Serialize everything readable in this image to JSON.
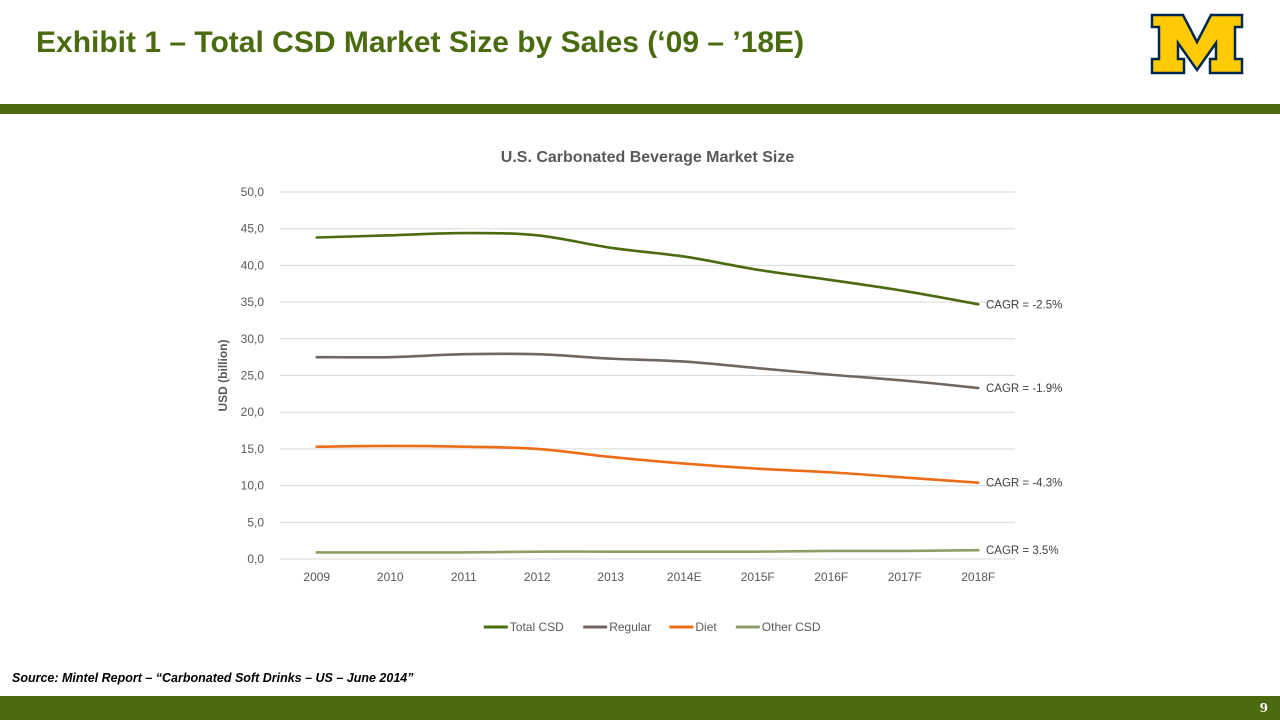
{
  "slide": {
    "title": "Exhibit 1 – Total CSD Market Size by Sales (‘09 – ’18E)",
    "source": "Source: Mintel Report – “Carbonated Soft Drinks – US – June 2014”",
    "page_number": "9",
    "logo_icon": "block-m-logo",
    "colors": {
      "accent": "#4a6b10",
      "logo_gold": "#ffcb05",
      "logo_blue": "#00274c"
    }
  },
  "chart_data": {
    "type": "line",
    "title": "U.S. Carbonated Beverage Market Size",
    "xlabel": "",
    "ylabel": "USD (billion)",
    "categories": [
      "2009",
      "2010",
      "2011",
      "2012",
      "2013",
      "2014E",
      "2015F",
      "2016F",
      "2017F",
      "2018F"
    ],
    "ylim": [
      0,
      50
    ],
    "yticks": [
      "0,0",
      "5,0",
      "10,0",
      "15,0",
      "20,0",
      "25,0",
      "30,0",
      "35,0",
      "40,0",
      "45,0",
      "50,0"
    ],
    "grid": true,
    "legend_position": "bottom",
    "series": [
      {
        "name": "Total CSD",
        "color": "#4a6b10",
        "values": [
          43.8,
          44.1,
          44.4,
          44.1,
          42.4,
          41.2,
          39.4,
          38.0,
          36.5,
          34.7
        ],
        "annotation": "CAGR = -2.5%"
      },
      {
        "name": "Regular",
        "color": "#716660",
        "values": [
          27.5,
          27.5,
          27.9,
          27.9,
          27.3,
          26.9,
          26.0,
          25.1,
          24.3,
          23.3
        ],
        "annotation": "CAGR = -1.9%"
      },
      {
        "name": "Diet",
        "color": "#ec6d18",
        "values": [
          15.3,
          15.4,
          15.3,
          15.0,
          13.9,
          13.0,
          12.3,
          11.8,
          11.1,
          10.4
        ],
        "annotation": "CAGR = -4.3%"
      },
      {
        "name": "Other CSD",
        "color": "#8c9e66",
        "values": [
          0.9,
          0.9,
          0.9,
          1.0,
          1.0,
          1.0,
          1.0,
          1.1,
          1.1,
          1.2
        ],
        "annotation": "CAGR = 3.5%"
      }
    ]
  }
}
